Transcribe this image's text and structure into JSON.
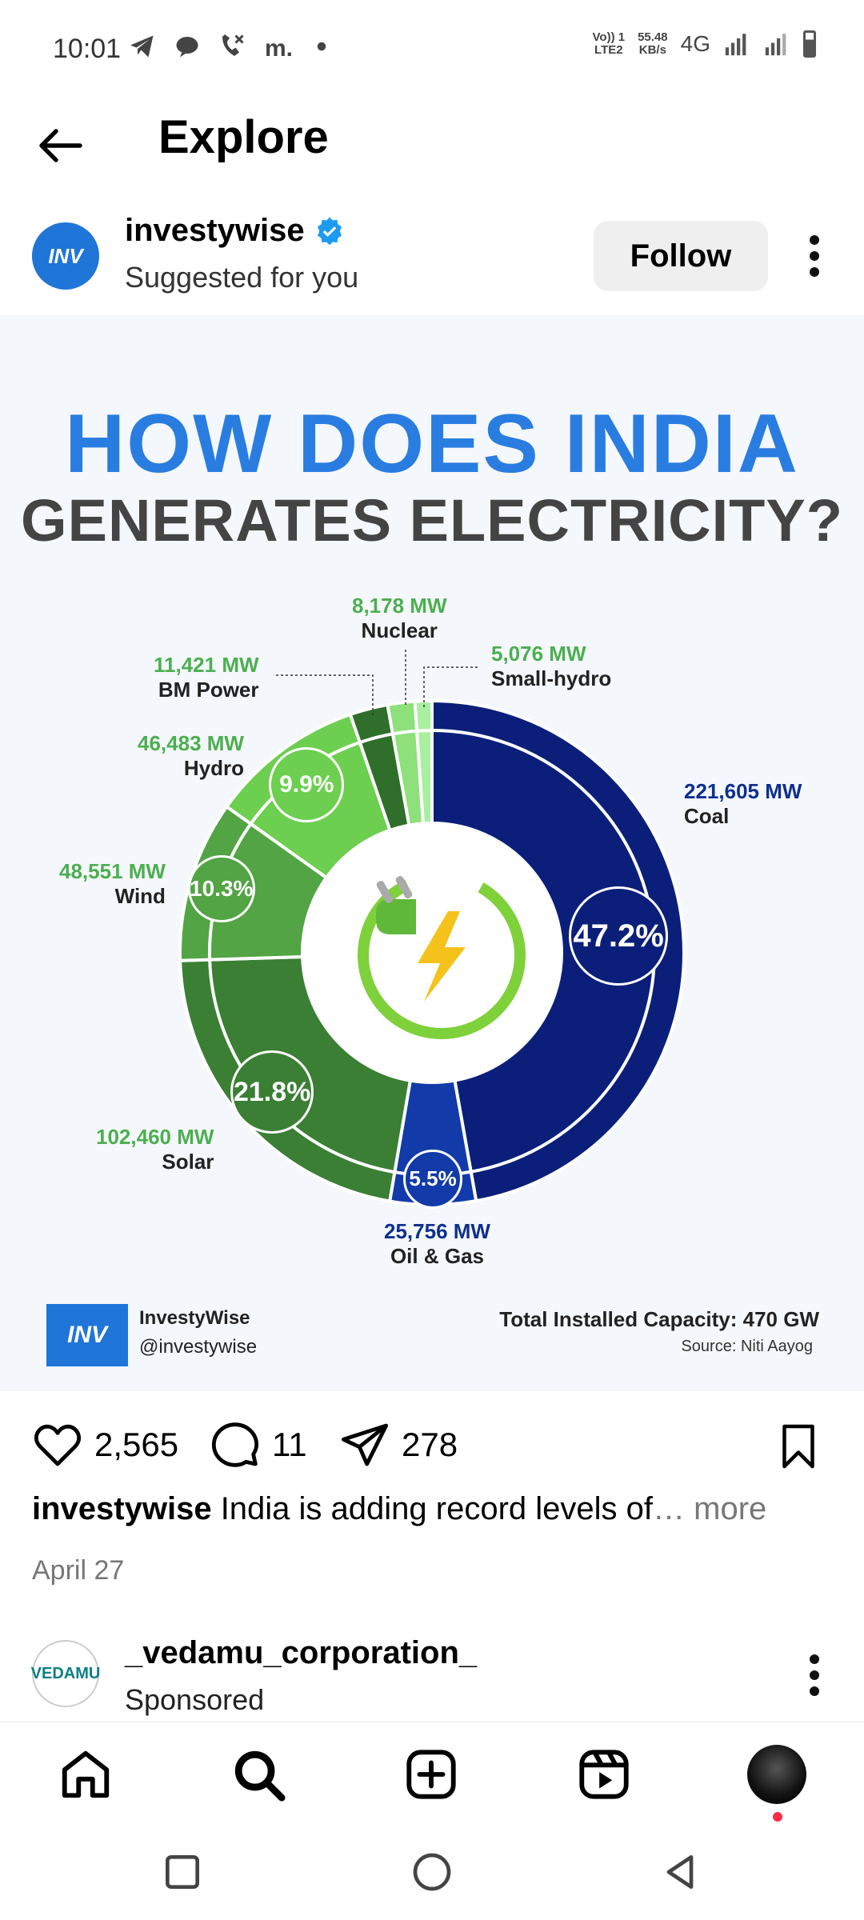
{
  "status_bar": {
    "time": "10:01",
    "volte": "Vo)) 1\nLTE2",
    "speed": "55.48\nKB/s",
    "network": "4G"
  },
  "header": {
    "title": "Explore"
  },
  "post": {
    "username": "investywise",
    "subtitle": "Suggested for you",
    "avatar_text": "INV",
    "follow_label": "Follow",
    "likes": "2,565",
    "comments": "11",
    "shares": "278",
    "caption_user": "investywise",
    "caption_text": " India is adding record levels of",
    "caption_more": "… more",
    "date": "April 27"
  },
  "infographic": {
    "title_line1": "HOW DOES INDIA",
    "title_line2": "GENERATES ELECTRICITY?",
    "brand_logo": "INV",
    "brand_name": "InvestyWise",
    "brand_handle": "@investywise",
    "total": "Total Installed Capacity: 470 GW",
    "source": "Source: Niti Aayog",
    "colors": {
      "coal": "#0b1f7a",
      "oil_gas": "#123aa8",
      "solar": "#3a7f34",
      "wind": "#52a444",
      "hydro": "#6ccf4f",
      "bm_power": "#2f6e2b",
      "nuclear": "#8ee07a",
      "small_hydro": "#a9efa0"
    }
  },
  "chart_data": {
    "type": "pie",
    "title": "HOW DOES INDIA GENERATES ELECTRICITY?",
    "slices": [
      {
        "name": "Coal",
        "value_mw": 221605,
        "label": "221,605 MW",
        "percent_label": "47.2%"
      },
      {
        "name": "Oil & Gas",
        "value_mw": 25756,
        "label": "25,756 MW",
        "percent_label": "5.5%"
      },
      {
        "name": "Solar",
        "value_mw": 102460,
        "label": "102,460 MW",
        "percent_label": "21.8%"
      },
      {
        "name": "Wind",
        "value_mw": 48551,
        "label": "48,551 MW",
        "percent_label": "10.3%"
      },
      {
        "name": "Hydro",
        "value_mw": 46483,
        "label": "46,483 MW",
        "percent_label": "9.9%"
      },
      {
        "name": "BM Power",
        "value_mw": 11421,
        "label": "11,421 MW",
        "percent_label": ""
      },
      {
        "name": "Nuclear",
        "value_mw": 8178,
        "label": "8,178 MW",
        "percent_label": ""
      },
      {
        "name": "Small-hydro",
        "value_mw": 5076,
        "label": "5,076 MW",
        "percent_label": ""
      }
    ]
  },
  "next_post": {
    "username": "_vedamu_corporation_",
    "subtitle": "Sponsored",
    "avatar_text": "VEDAMU"
  }
}
